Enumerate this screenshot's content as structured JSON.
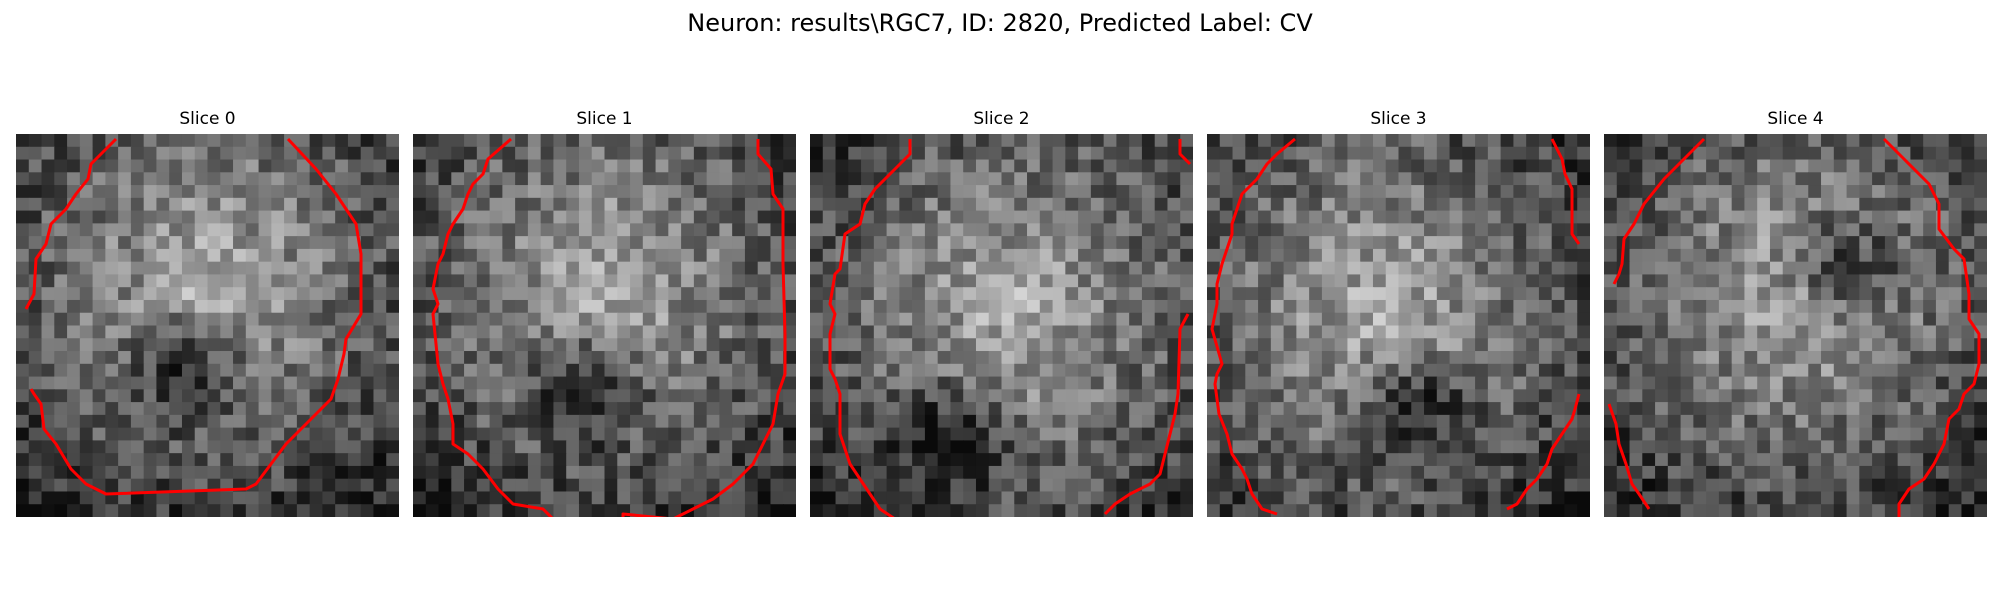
{
  "figure": {
    "title": "Neuron: results\\RGC7, ID: 2820, Predicted Label: CV"
  },
  "image": {
    "colormap": "gray",
    "grid_size": 30,
    "outline_color": "#ff0000",
    "dark_blob_centers": [
      [
        0.45,
        0.62
      ],
      [
        0.45,
        0.67
      ],
      [
        0.37,
        0.79
      ],
      [
        0.54,
        0.72
      ],
      [
        0.62,
        0.35
      ]
    ]
  },
  "panels": [
    {
      "title": "Slice 0",
      "seed": 11,
      "bright_center": [
        0.5,
        0.38
      ],
      "dark_spot": [
        0.45,
        0.62
      ]
    },
    {
      "title": "Slice 1",
      "seed": 23,
      "bright_center": [
        0.5,
        0.4
      ],
      "dark_spot": [
        0.45,
        0.67
      ]
    },
    {
      "title": "Slice 2",
      "seed": 37,
      "bright_center": [
        0.52,
        0.45
      ],
      "dark_spot": [
        0.37,
        0.79
      ]
    },
    {
      "title": "Slice 3",
      "seed": 41,
      "bright_center": [
        0.45,
        0.45
      ],
      "dark_spot": [
        0.54,
        0.72
      ]
    },
    {
      "title": "Slice 4",
      "seed": 53,
      "bright_center": [
        0.5,
        0.42
      ],
      "dark_spot": [
        0.62,
        0.35
      ]
    }
  ]
}
